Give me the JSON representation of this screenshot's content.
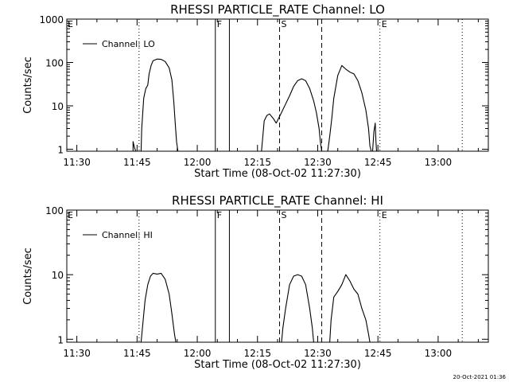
{
  "chart_data": [
    {
      "type": "line",
      "title": "RHESSI PARTICLE_RATE Channel: LO",
      "xlabel": "Start Time (08-Oct-02 11:27:30)",
      "ylabel": "Counts/sec",
      "yscale": "log",
      "ylim": [
        0.9,
        1000
      ],
      "xlim": [
        "11:27:30",
        "13:12:30"
      ],
      "xticks": [
        "11:30",
        "11:45",
        "12:00",
        "12:15",
        "12:30",
        "12:45",
        "13:00"
      ],
      "yticks": [
        "1",
        "10",
        "100",
        "1000"
      ],
      "legend": "Channel: LO",
      "legend_position": "top-left",
      "grid": false,
      "markers": [
        {
          "time": "11:45:30",
          "label": "",
          "style": "dotted"
        },
        {
          "time": "12:04:30",
          "label": "F",
          "style": "solid"
        },
        {
          "time": "12:08:00",
          "label": "",
          "style": "solid"
        },
        {
          "time": "12:20:30",
          "label": "S",
          "style": "dashed"
        },
        {
          "time": "12:31:00",
          "label": "",
          "style": "dashed"
        },
        {
          "time": "12:45:30",
          "label": "E",
          "style": "dotted"
        },
        {
          "time": "13:06:00",
          "label": "",
          "style": "dotted"
        }
      ],
      "edge_labels": [
        "E"
      ],
      "series": [
        {
          "name": "Channel: LO",
          "segments": [
            [
              [
                "11:44:00",
                0.9
              ],
              [
                "11:44:00",
                1.5
              ],
              [
                "11:44:20",
                1.1
              ],
              [
                "11:44:40",
                0.9
              ]
            ],
            [
              [
                "11:46:00",
                0.9
              ],
              [
                "11:46:10",
                3
              ],
              [
                "11:46:40",
                15
              ],
              [
                "11:47:10",
                25
              ],
              [
                "11:47:40",
                30
              ],
              [
                "11:48:00",
                55
              ],
              [
                "11:48:30",
                85
              ],
              [
                "11:49:00",
                110
              ],
              [
                "11:50:00",
                120
              ],
              [
                "11:51:00",
                118
              ],
              [
                "11:52:00",
                105
              ],
              [
                "11:53:00",
                75
              ],
              [
                "11:53:40",
                40
              ],
              [
                "11:54:10",
                12
              ],
              [
                "11:54:30",
                4
              ],
              [
                "11:54:50",
                1.5
              ],
              [
                "11:55:10",
                0.9
              ]
            ],
            [
              [
                "12:16:00",
                0.9
              ],
              [
                "12:16:20",
                2
              ],
              [
                "12:16:40",
                4.5
              ],
              [
                "12:17:20",
                6
              ],
              [
                "12:18:00",
                6.5
              ],
              [
                "12:19:00",
                5
              ],
              [
                "12:19:40",
                4
              ],
              [
                "12:21:00",
                7
              ],
              [
                "12:22:00",
                11
              ],
              [
                "12:23:00",
                17
              ],
              [
                "12:24:00",
                28
              ],
              [
                "12:25:00",
                38
              ],
              [
                "12:26:00",
                42
              ],
              [
                "12:27:00",
                38
              ],
              [
                "12:28:00",
                25
              ],
              [
                "12:29:00",
                13
              ],
              [
                "12:29:40",
                7
              ],
              [
                "12:30:20",
                3
              ],
              [
                "12:30:40",
                1.5
              ],
              [
                "12:31:00",
                0.9
              ]
            ],
            [
              [
                "12:32:30",
                0.9
              ],
              [
                "12:33:00",
                2
              ],
              [
                "12:33:30",
                5
              ],
              [
                "12:34:00",
                15
              ],
              [
                "12:35:00",
                50
              ],
              [
                "12:36:00",
                85
              ],
              [
                "12:37:00",
                70
              ],
              [
                "12:38:00",
                60
              ],
              [
                "12:39:00",
                55
              ],
              [
                "12:40:00",
                38
              ],
              [
                "12:41:00",
                20
              ],
              [
                "12:42:00",
                8
              ],
              [
                "12:42:40",
                3
              ],
              [
                "12:43:00",
                1.2
              ],
              [
                "12:43:20",
                0.9
              ]
            ],
            [
              [
                "12:43:40",
                0.9
              ],
              [
                "12:44:00",
                2.5
              ],
              [
                "12:44:20",
                4
              ],
              [
                "12:44:30",
                1.5
              ],
              [
                "12:44:40",
                0.9
              ]
            ]
          ]
        }
      ]
    },
    {
      "type": "line",
      "title": "RHESSI PARTICLE_RATE Channel: HI",
      "xlabel": "Start Time (08-Oct-02 11:27:30)",
      "ylabel": "Counts/sec",
      "yscale": "log",
      "ylim": [
        0.9,
        100
      ],
      "xlim": [
        "11:27:30",
        "13:12:30"
      ],
      "xticks": [
        "11:30",
        "11:45",
        "12:00",
        "12:15",
        "12:30",
        "12:45",
        "13:00"
      ],
      "yticks": [
        "1",
        "10",
        "100"
      ],
      "legend": "Channel: HI",
      "legend_position": "top-left",
      "grid": false,
      "markers": [
        {
          "time": "11:45:30",
          "label": "",
          "style": "dotted"
        },
        {
          "time": "12:04:30",
          "label": "F",
          "style": "solid"
        },
        {
          "time": "12:08:00",
          "label": "",
          "style": "solid"
        },
        {
          "time": "12:20:30",
          "label": "S",
          "style": "dashed"
        },
        {
          "time": "12:31:00",
          "label": "",
          "style": "dashed"
        },
        {
          "time": "12:45:30",
          "label": "E",
          "style": "dotted"
        },
        {
          "time": "13:06:00",
          "label": "",
          "style": "dotted"
        }
      ],
      "edge_labels": [
        "E"
      ],
      "series": [
        {
          "name": "Channel: HI",
          "segments": [
            [
              [
                "11:46:00",
                0.9
              ],
              [
                "11:46:20",
                1.5
              ],
              [
                "11:47:00",
                4
              ],
              [
                "11:47:40",
                7
              ],
              [
                "11:48:20",
                9.5
              ],
              [
                "11:49:00",
                10.5
              ],
              [
                "11:50:00",
                10.2
              ],
              [
                "11:51:00",
                10.5
              ],
              [
                "11:52:00",
                8.5
              ],
              [
                "11:53:00",
                5
              ],
              [
                "11:53:40",
                2.5
              ],
              [
                "11:54:20",
                1.2
              ],
              [
                "11:54:40",
                0.9
              ]
            ],
            [
              [
                "12:21:00",
                0.9
              ],
              [
                "12:21:20",
                1.5
              ],
              [
                "12:22:00",
                3
              ],
              [
                "12:23:00",
                7
              ],
              [
                "12:24:00",
                9.5
              ],
              [
                "12:25:00",
                10
              ],
              [
                "12:26:00",
                9.5
              ],
              [
                "12:27:00",
                7
              ],
              [
                "12:28:00",
                3
              ],
              [
                "12:28:40",
                1.5
              ],
              [
                "12:29:00",
                0.9
              ]
            ],
            [
              [
                "12:33:00",
                0.9
              ],
              [
                "12:33:20",
                2
              ],
              [
                "12:34:00",
                4.5
              ],
              [
                "12:35:00",
                5.5
              ],
              [
                "12:36:00",
                7
              ],
              [
                "12:37:00",
                10
              ],
              [
                "12:38:00",
                8
              ],
              [
                "12:39:00",
                6
              ],
              [
                "12:40:00",
                5
              ],
              [
                "12:41:00",
                3
              ],
              [
                "12:42:00",
                2
              ],
              [
                "12:42:40",
                1.2
              ],
              [
                "12:43:00",
                0.9
              ]
            ]
          ]
        }
      ]
    }
  ],
  "footer": {
    "timestamp": "20-Oct-2021 01:36"
  }
}
